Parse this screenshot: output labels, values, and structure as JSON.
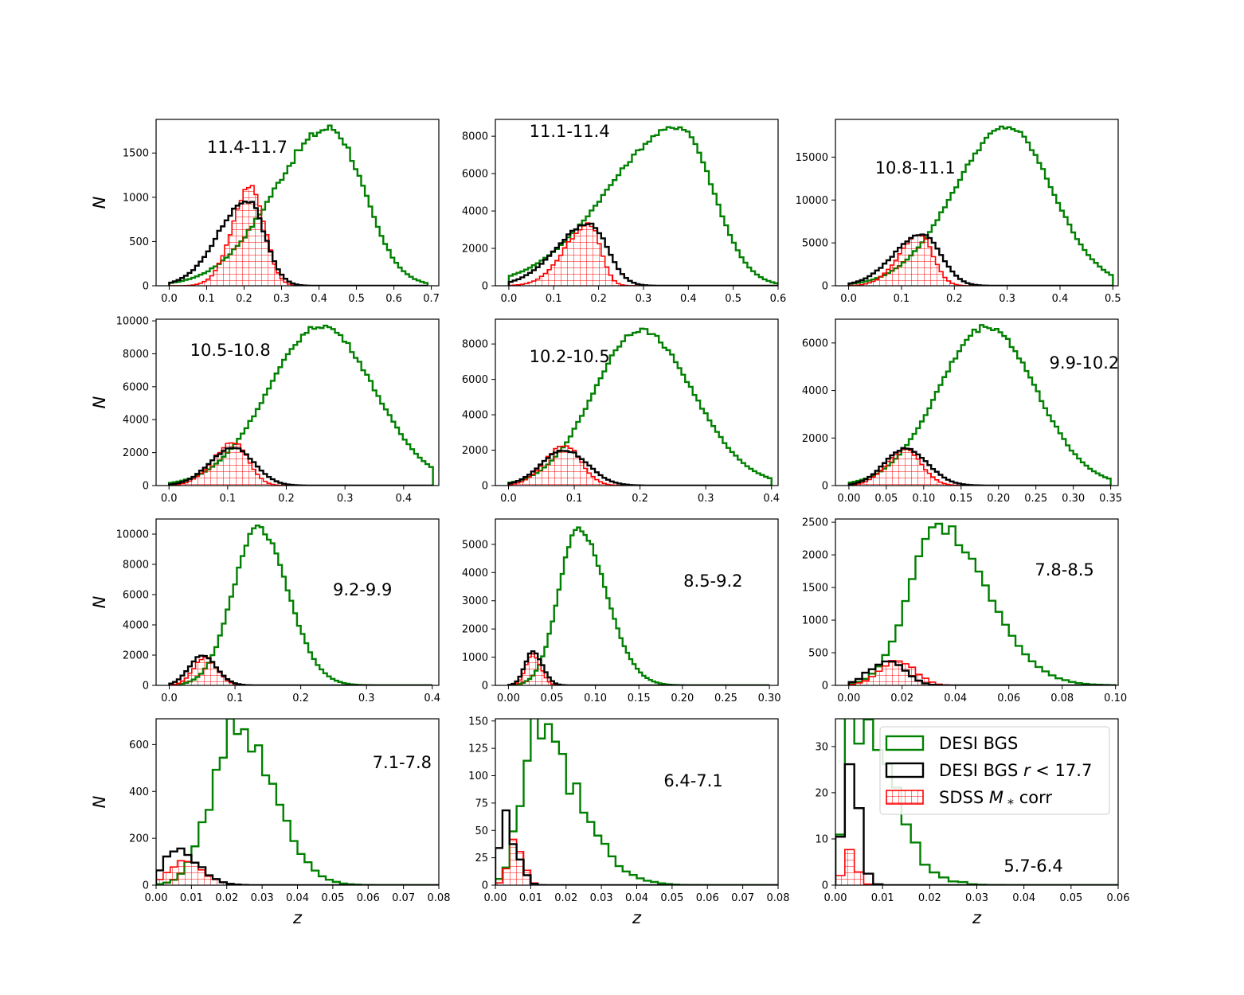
{
  "figure": {
    "ylabel": "N",
    "xlabel": "z",
    "legend": {
      "placement": "top-right of last panel",
      "entries": [
        {
          "label_pre": "DESI BGS",
          "label_math": "",
          "label_post": "",
          "color": "#008000",
          "hatch": false
        },
        {
          "label_pre": "DESI BGS ",
          "label_math": "r",
          "label_post": " < 17.7",
          "color": "#000000",
          "hatch": false
        },
        {
          "label_pre": "SDSS ",
          "label_math": "M",
          "label_sub": "*",
          "label_post": " corr",
          "color": "#ff0000",
          "hatch": true
        }
      ]
    }
  },
  "chart_data": [
    {
      "type": "histogram",
      "label": "11.4-11.7",
      "label_pos": "top-left",
      "xlim": [
        -0.035,
        0.72
      ],
      "ylim": [
        0,
        1880
      ],
      "xticks": [
        0.0,
        0.1,
        0.2,
        0.3,
        0.4,
        0.5,
        0.6,
        0.7
      ],
      "xtick_labels": [
        "0.0",
        "0.1",
        "0.2",
        "0.3",
        "0.4",
        "0.5",
        "0.6",
        "0.7"
      ],
      "yticks": [
        0,
        500,
        1000,
        1500
      ],
      "ytick_labels": [
        "0",
        "500",
        "1000",
        "1500"
      ],
      "xmax": 0.69,
      "nbins": 70,
      "series": [
        {
          "name": "DESI BGS",
          "color": "#008000",
          "peak": 1780,
          "mode": 0.43,
          "sl": 0.15,
          "sr": 0.09,
          "jitter": 0.03
        },
        {
          "name": "DESI BGS r<17.7",
          "color": "#000000",
          "peak": 960,
          "mode": 0.21,
          "sl": 0.08,
          "sr": 0.045,
          "jitter": 0.03
        },
        {
          "name": "SDSS M* corr",
          "color": "#ff0000",
          "peak": 1130,
          "mode": 0.22,
          "sl": 0.05,
          "sr": 0.035,
          "jitter": 0.04
        }
      ]
    },
    {
      "type": "histogram",
      "label": "11.1-11.4",
      "label_pos": "top-left",
      "xlim": [
        -0.03,
        0.6
      ],
      "ylim": [
        0,
        8900
      ],
      "xticks": [
        0.0,
        0.1,
        0.2,
        0.3,
        0.4,
        0.5,
        0.6
      ],
      "xtick_labels": [
        "0.0",
        "0.1",
        "0.2",
        "0.3",
        "0.4",
        "0.5",
        "0.6"
      ],
      "yticks": [
        0,
        2000,
        4000,
        6000,
        8000
      ],
      "ytick_labels": [
        "0",
        "2000",
        "4000",
        "6000",
        "8000"
      ],
      "xmax": 0.6,
      "nbins": 70,
      "series": [
        {
          "name": "DESI BGS",
          "color": "#008000",
          "peak": 8500,
          "mode": 0.38,
          "sl": 0.16,
          "sr": 0.075,
          "jitter": 0.015
        },
        {
          "name": "DESI BGS r<17.7",
          "color": "#000000",
          "peak": 3300,
          "mode": 0.18,
          "sl": 0.075,
          "sr": 0.04,
          "jitter": 0.02
        },
        {
          "name": "SDSS M* corr",
          "color": "#ff0000",
          "peak": 3300,
          "mode": 0.18,
          "sl": 0.055,
          "sr": 0.025,
          "jitter": 0.03
        }
      ]
    },
    {
      "type": "histogram",
      "label": "10.8-11.1",
      "label_pos": "top-left",
      "xlim": [
        -0.025,
        0.51
      ],
      "ylim": [
        0,
        19400
      ],
      "xticks": [
        0.0,
        0.1,
        0.2,
        0.3,
        0.4,
        0.5
      ],
      "xtick_labels": [
        "0.0",
        "0.1",
        "0.2",
        "0.3",
        "0.4",
        "0.5"
      ],
      "yticks": [
        0,
        5000,
        10000,
        15000
      ],
      "ytick_labels": [
        "0",
        "5000",
        "10000",
        "15000"
      ],
      "xmax": 0.5,
      "nbins": 70,
      "series": [
        {
          "name": "DESI BGS",
          "color": "#008000",
          "peak": 18500,
          "mode": 0.3,
          "sl": 0.1,
          "sr": 0.085,
          "jitter": 0.015
        },
        {
          "name": "DESI BGS r<17.7",
          "color": "#000000",
          "peak": 6000,
          "mode": 0.14,
          "sl": 0.055,
          "sr": 0.035,
          "jitter": 0.02
        },
        {
          "name": "SDSS M* corr",
          "color": "#ff0000",
          "peak": 5900,
          "mode": 0.135,
          "sl": 0.04,
          "sr": 0.025,
          "jitter": 0.03
        }
      ]
    },
    {
      "type": "histogram",
      "label": "10.5-10.8",
      "label_pos": "top-left",
      "xlim": [
        -0.022,
        0.46
      ],
      "ylim": [
        0,
        10100
      ],
      "xticks": [
        0.0,
        0.1,
        0.2,
        0.3,
        0.4
      ],
      "xtick_labels": [
        "0.0",
        "0.1",
        "0.2",
        "0.3",
        "0.4"
      ],
      "yticks": [
        0,
        2000,
        4000,
        6000,
        8000,
        10000
      ],
      "ytick_labels": [
        "0",
        "2000",
        "4000",
        "6000",
        "8000",
        "10000"
      ],
      "xmax": 0.45,
      "nbins": 70,
      "series": [
        {
          "name": "DESI BGS",
          "color": "#008000",
          "peak": 9700,
          "mode": 0.26,
          "sl": 0.09,
          "sr": 0.09,
          "jitter": 0.015
        },
        {
          "name": "DESI BGS r<17.7",
          "color": "#000000",
          "peak": 2300,
          "mode": 0.11,
          "sl": 0.04,
          "sr": 0.035,
          "jitter": 0.03
        },
        {
          "name": "SDSS M* corr",
          "color": "#ff0000",
          "peak": 2600,
          "mode": 0.11,
          "sl": 0.035,
          "sr": 0.025,
          "jitter": 0.04
        }
      ]
    },
    {
      "type": "histogram",
      "label": "10.2-10.5",
      "label_pos": "top-left",
      "xlim": [
        -0.02,
        0.41
      ],
      "ylim": [
        0,
        9400
      ],
      "xticks": [
        0.0,
        0.1,
        0.2,
        0.3,
        0.4
      ],
      "xtick_labels": [
        "0.0",
        "0.1",
        "0.2",
        "0.3",
        "0.4"
      ],
      "yticks": [
        0,
        2000,
        4000,
        6000,
        8000
      ],
      "ytick_labels": [
        "0",
        "2000",
        "4000",
        "6000",
        "8000"
      ],
      "xmax": 0.4,
      "nbins": 70,
      "series": [
        {
          "name": "DESI BGS",
          "color": "#008000",
          "peak": 8800,
          "mode": 0.2,
          "sl": 0.07,
          "sr": 0.08,
          "jitter": 0.015
        },
        {
          "name": "DESI BGS r<17.7",
          "color": "#000000",
          "peak": 2000,
          "mode": 0.085,
          "sl": 0.035,
          "sr": 0.035,
          "jitter": 0.03
        },
        {
          "name": "SDSS M* corr",
          "color": "#ff0000",
          "peak": 2300,
          "mode": 0.085,
          "sl": 0.03,
          "sr": 0.025,
          "jitter": 0.04
        }
      ]
    },
    {
      "type": "histogram",
      "label": "9.9-10.2",
      "label_pos": "top-right",
      "xlim": [
        -0.018,
        0.36
      ],
      "ylim": [
        0,
        7000
      ],
      "xticks": [
        0.0,
        0.05,
        0.1,
        0.15,
        0.2,
        0.25,
        0.3,
        0.35
      ],
      "xtick_labels": [
        "0.00",
        "0.05",
        "0.10",
        "0.15",
        "0.20",
        "0.25",
        "0.30",
        "0.35"
      ],
      "yticks": [
        0,
        2000,
        4000,
        6000
      ],
      "ytick_labels": [
        "0",
        "2000",
        "4000",
        "6000"
      ],
      "xmax": 0.35,
      "nbins": 70,
      "series": [
        {
          "name": "DESI BGS",
          "color": "#008000",
          "peak": 6700,
          "mode": 0.185,
          "sl": 0.065,
          "sr": 0.065,
          "jitter": 0.02
        },
        {
          "name": "DESI BGS r<17.7",
          "color": "#000000",
          "peak": 1550,
          "mode": 0.075,
          "sl": 0.028,
          "sr": 0.03,
          "jitter": 0.03
        },
        {
          "name": "SDSS M* corr",
          "color": "#ff0000",
          "peak": 1500,
          "mode": 0.075,
          "sl": 0.025,
          "sr": 0.022,
          "jitter": 0.04
        }
      ]
    },
    {
      "type": "histogram",
      "label": "9.2-9.9",
      "label_pos": "mid-right",
      "xlim": [
        -0.02,
        0.41
      ],
      "ylim": [
        0,
        11000
      ],
      "xticks": [
        0.0,
        0.1,
        0.2,
        0.3,
        0.4
      ],
      "xtick_labels": [
        "0.0",
        "0.1",
        "0.2",
        "0.3",
        "0.4"
      ],
      "yticks": [
        0,
        2000,
        4000,
        6000,
        8000,
        10000
      ],
      "ytick_labels": [
        "0",
        "2000",
        "4000",
        "6000",
        "8000",
        "10000"
      ],
      "xmax": 0.4,
      "nbins": 70,
      "series": [
        {
          "name": "DESI BGS",
          "color": "#008000",
          "peak": 10400,
          "mode": 0.135,
          "sl": 0.038,
          "sr": 0.045,
          "jitter": 0.02
        },
        {
          "name": "DESI BGS r<17.7",
          "color": "#000000",
          "peak": 1950,
          "mode": 0.05,
          "sl": 0.02,
          "sr": 0.022,
          "jitter": 0.03
        },
        {
          "name": "SDSS M* corr",
          "color": "#ff0000",
          "peak": 1850,
          "mode": 0.055,
          "sl": 0.018,
          "sr": 0.018,
          "jitter": 0.04
        }
      ]
    },
    {
      "type": "histogram",
      "label": "8.5-9.2",
      "label_pos": "mid-right",
      "xlim": [
        -0.015,
        0.31
      ],
      "ylim": [
        0,
        5900
      ],
      "xticks": [
        0.0,
        0.05,
        0.1,
        0.15,
        0.2,
        0.25,
        0.3
      ],
      "xtick_labels": [
        "0.00",
        "0.05",
        "0.10",
        "0.15",
        "0.20",
        "0.25",
        "0.30"
      ],
      "yticks": [
        0,
        1000,
        2000,
        3000,
        4000,
        5000
      ],
      "ytick_labels": [
        "0",
        "1000",
        "2000",
        "3000",
        "4000",
        "5000"
      ],
      "xmax": 0.3,
      "nbins": 80,
      "series": [
        {
          "name": "DESI BGS",
          "color": "#008000",
          "peak": 5600,
          "mode": 0.08,
          "sl": 0.022,
          "sr": 0.032,
          "jitter": 0.02
        },
        {
          "name": "DESI BGS r<17.7",
          "color": "#000000",
          "peak": 1200,
          "mode": 0.028,
          "sl": 0.009,
          "sr": 0.011,
          "jitter": 0.03
        },
        {
          "name": "SDSS M* corr",
          "color": "#ff0000",
          "peak": 1100,
          "mode": 0.028,
          "sl": 0.008,
          "sr": 0.009,
          "jitter": 0.04
        }
      ]
    },
    {
      "type": "histogram",
      "label": "7.8-8.5",
      "label_pos": "mid-right",
      "xlim": [
        -0.005,
        0.101
      ],
      "ylim": [
        0,
        2550
      ],
      "xticks": [
        0.0,
        0.02,
        0.04,
        0.06,
        0.08,
        0.1
      ],
      "xtick_labels": [
        "0.00",
        "0.02",
        "0.04",
        "0.06",
        "0.08",
        "0.10"
      ],
      "yticks": [
        0,
        500,
        1000,
        1500,
        2000,
        2500
      ],
      "ytick_labels": [
        "0",
        "500",
        "1000",
        "1500",
        "2000",
        "2500"
      ],
      "xmax": 0.1,
      "nbins": 40,
      "series": [
        {
          "name": "DESI BGS",
          "color": "#008000",
          "peak": 2450,
          "mode": 0.034,
          "sl": 0.011,
          "sr": 0.018,
          "jitter": 0.05
        },
        {
          "name": "DESI BGS r<17.7",
          "color": "#000000",
          "peak": 390,
          "mode": 0.015,
          "sl": 0.007,
          "sr": 0.006,
          "jitter": 0.1
        },
        {
          "name": "SDSS M* corr",
          "color": "#ff0000",
          "peak": 380,
          "mode": 0.019,
          "sl": 0.007,
          "sr": 0.006,
          "jitter": 0.08
        }
      ]
    },
    {
      "type": "histogram",
      "label": "7.1-7.8",
      "label_pos": "mid-right",
      "xlim": [
        0,
        0.08
      ],
      "ylim": [
        0,
        710
      ],
      "xticks": [
        0.0,
        0.01,
        0.02,
        0.03,
        0.04,
        0.05,
        0.06,
        0.07,
        0.08
      ],
      "xtick_labels": [
        "0.00",
        "0.01",
        "0.02",
        "0.03",
        "0.04",
        "0.05",
        "0.06",
        "0.07",
        "0.08"
      ],
      "yticks": [
        0,
        200,
        400,
        600
      ],
      "ytick_labels": [
        "0",
        "200",
        "400",
        "600"
      ],
      "xmax": 0.08,
      "nbins": 40,
      "series": [
        {
          "name": "DESI BGS",
          "color": "#008000",
          "peak": 680,
          "mode": 0.023,
          "sl": 0.007,
          "sr": 0.01,
          "jitter": 0.1
        },
        {
          "name": "DESI BGS r<17.7",
          "color": "#000000",
          "peak": 145,
          "mode": 0.006,
          "sl": 0.004,
          "sr": 0.006,
          "jitter": 0.12
        },
        {
          "name": "SDSS M* corr",
          "color": "#ff0000",
          "peak": 110,
          "mode": 0.008,
          "sl": 0.004,
          "sr": 0.005,
          "jitter": 0.1
        }
      ]
    },
    {
      "type": "histogram",
      "label": "6.4-7.1",
      "label_pos": "mid-right",
      "xlim": [
        0,
        0.08
      ],
      "ylim": [
        0,
        152
      ],
      "xticks": [
        0.0,
        0.01,
        0.02,
        0.03,
        0.04,
        0.05,
        0.06,
        0.07,
        0.08
      ],
      "xtick_labels": [
        "0.00",
        "0.01",
        "0.02",
        "0.03",
        "0.04",
        "0.05",
        "0.06",
        "0.07",
        "0.08"
      ],
      "yticks": [
        0,
        25,
        50,
        75,
        100,
        125,
        150
      ],
      "ytick_labels": [
        "0",
        "25",
        "50",
        "75",
        "100",
        "125",
        "150"
      ],
      "xmax": 0.08,
      "nbins": 40,
      "series": [
        {
          "name": "DESI BGS",
          "color": "#008000",
          "peak": 142,
          "mode": 0.011,
          "sl": 0.004,
          "sr": 0.012,
          "jitter": 0.18
        },
        {
          "name": "DESI BGS r<17.7",
          "color": "#000000",
          "peak": 55,
          "mode": 0.003,
          "sl": 0.002,
          "sr": 0.003,
          "jitter": 0.3
        },
        {
          "name": "SDSS M* corr",
          "color": "#ff0000",
          "peak": 42,
          "mode": 0.006,
          "sl": 0.002,
          "sr": 0.002,
          "jitter": 0.2
        }
      ]
    },
    {
      "type": "histogram",
      "label": "5.7-6.4",
      "label_pos": "bottom-right",
      "xlim": [
        0,
        0.06
      ],
      "ylim": [
        0,
        36
      ],
      "xticks": [
        0.0,
        0.01,
        0.02,
        0.03,
        0.04,
        0.05,
        0.06
      ],
      "xtick_labels": [
        "0.00",
        "0.01",
        "0.02",
        "0.03",
        "0.04",
        "0.05",
        "0.06"
      ],
      "yticks": [
        0,
        10,
        20,
        30
      ],
      "ytick_labels": [
        "0",
        "10",
        "20",
        "30"
      ],
      "xmax": 0.06,
      "nbins": 30,
      "series": [
        {
          "name": "DESI BGS",
          "color": "#008000",
          "peak": 34,
          "mode": 0.004,
          "sl": 0.002,
          "sr": 0.008,
          "jitter": 0.3
        },
        {
          "name": "DESI BGS r<17.7",
          "color": "#000000",
          "peak": 22,
          "mode": 0.003,
          "sl": 0.0015,
          "sr": 0.002,
          "jitter": 0.3
        },
        {
          "name": "SDSS M* corr",
          "color": "#ff0000",
          "peak": 7,
          "mode": 0.003,
          "sl": 0.0015,
          "sr": 0.0015,
          "jitter": 0.3
        }
      ]
    }
  ]
}
